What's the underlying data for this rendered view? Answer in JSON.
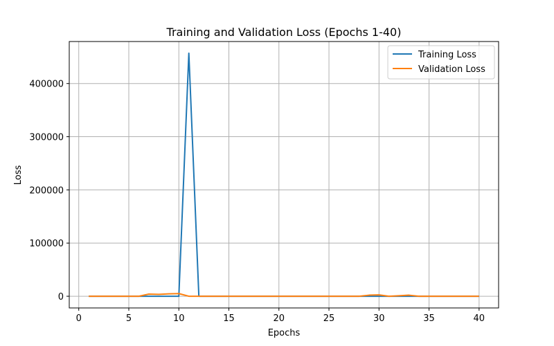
{
  "chart_data": {
    "type": "line",
    "title": "Training and Validation Loss (Epochs 1-40)",
    "xlabel": "Epochs",
    "ylabel": "Loss",
    "xlim": [
      -0.95,
      41.95
    ],
    "ylim": [
      -22000,
      479000
    ],
    "xticks": [
      0,
      5,
      10,
      15,
      20,
      25,
      30,
      35,
      40
    ],
    "yticks": [
      0,
      100000,
      200000,
      300000,
      400000
    ],
    "grid": true,
    "legend_position": "top-right",
    "x": [
      1,
      2,
      3,
      4,
      5,
      6,
      7,
      8,
      9,
      10,
      11,
      12,
      13,
      14,
      15,
      16,
      17,
      18,
      19,
      20,
      21,
      22,
      23,
      24,
      25,
      26,
      27,
      28,
      29,
      30,
      31,
      32,
      33,
      34,
      35,
      36,
      37,
      38,
      39,
      40
    ],
    "series": [
      {
        "name": "Training Loss",
        "color": "#1f77b4",
        "values": [
          0,
          0,
          0,
          0,
          0,
          0,
          0,
          0,
          0,
          0,
          457000,
          0,
          0,
          0,
          0,
          0,
          0,
          0,
          0,
          0,
          0,
          0,
          0,
          0,
          0,
          0,
          0,
          0,
          0,
          0,
          0,
          0,
          0,
          0,
          0,
          0,
          0,
          0,
          0,
          0
        ]
      },
      {
        "name": "Validation Loss",
        "color": "#ff7f0e",
        "values": [
          0,
          0,
          0,
          0,
          0,
          0,
          4000,
          3500,
          4500,
          5000,
          0,
          0,
          0,
          0,
          0,
          0,
          0,
          0,
          0,
          0,
          0,
          0,
          0,
          0,
          0,
          0,
          0,
          0,
          2000,
          2500,
          0,
          1000,
          2000,
          0,
          0,
          0,
          0,
          0,
          0,
          0
        ]
      }
    ]
  }
}
